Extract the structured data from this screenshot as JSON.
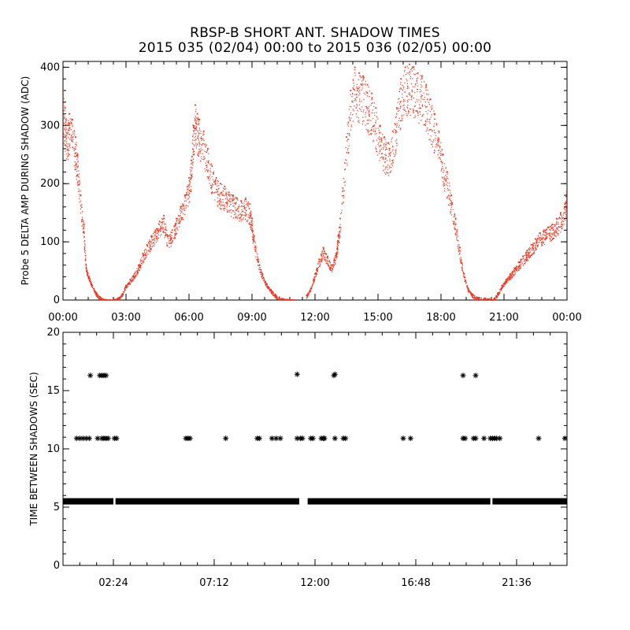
{
  "title": {
    "line1": "RBSP-B SHORT ANT. SHADOW TIMES",
    "line2": "2015 035 (02/04) 00:00 to 2015 036 (02/05) 00:00"
  },
  "colors": {
    "top_points": "#e8321e",
    "bottom_points": "#000000"
  },
  "chart_data": [
    {
      "type": "scatter",
      "title": "",
      "xlabel": "",
      "ylabel": "Probe 5 DELTA AMP DURING SHADOW (ADC)",
      "xlim": [
        0,
        24
      ],
      "ylim": [
        0,
        410
      ],
      "x_unit": "hours",
      "x_tick_values": [
        0,
        3,
        6,
        9,
        12,
        15,
        18,
        21,
        24
      ],
      "x_tick_labels": [
        "00:00",
        "03:00",
        "06:00",
        "09:00",
        "12:00",
        "15:00",
        "18:00",
        "21:00",
        "00:00"
      ],
      "y_ticks": [
        0,
        100,
        200,
        300,
        400
      ],
      "series": [
        {
          "marker": "dot",
          "color": "#e8321e",
          "x": [
            0.0,
            0.1,
            0.2,
            0.3,
            0.45,
            0.6,
            0.7,
            0.85,
            1.0,
            1.1,
            1.25,
            1.4,
            1.6,
            1.75,
            1.9,
            2.0,
            2.1,
            2.25,
            2.6,
            2.8,
            3.0,
            3.2,
            3.4,
            3.6,
            3.8,
            4.0,
            4.2,
            4.4,
            4.6,
            4.8,
            5.0,
            5.2,
            5.4,
            5.6,
            5.8,
            6.0,
            6.1,
            6.2,
            6.3,
            6.4,
            6.5,
            6.7,
            6.9,
            7.1,
            7.3,
            7.5,
            7.7,
            7.9,
            8.1,
            8.3,
            8.5,
            8.7,
            8.9,
            9.0,
            9.1,
            9.3,
            9.5,
            9.7,
            9.9,
            10.1,
            10.3,
            10.5,
            10.7,
            10.9,
            11.0,
            11.6,
            11.8,
            12.0,
            12.2,
            12.4,
            12.6,
            12.8,
            13.0,
            13.1,
            13.2,
            13.5,
            13.7,
            13.9,
            14.1,
            14.3,
            14.5,
            14.7,
            14.9,
            15.1,
            15.3,
            15.5,
            15.7,
            15.9,
            16.1,
            16.3,
            16.5,
            16.7,
            16.9,
            17.1,
            17.3,
            17.5,
            17.7,
            17.9,
            18.1,
            18.3,
            18.5,
            18.7,
            18.9,
            19.1,
            19.3,
            19.5,
            19.7,
            20.1,
            20.3,
            20.5,
            20.7,
            20.9,
            21.1,
            21.3,
            21.5,
            21.7,
            21.9,
            22.1,
            22.3,
            22.5,
            22.7,
            22.9,
            23.1,
            23.3,
            23.5,
            23.7,
            23.9,
            24.0
          ],
          "y": [
            360,
            330,
            300,
            320,
            310,
            280,
            250,
            180,
            130,
            60,
            40,
            25,
            12,
            6,
            2,
            1,
            0,
            0,
            3,
            10,
            25,
            35,
            45,
            60,
            80,
            95,
            110,
            120,
            135,
            145,
            110,
            120,
            140,
            160,
            180,
            210,
            240,
            300,
            335,
            320,
            310,
            290,
            260,
            230,
            210,
            200,
            195,
            185,
            180,
            175,
            170,
            175,
            165,
            140,
            110,
            70,
            45,
            28,
            18,
            10,
            5,
            2,
            1,
            0,
            0,
            8,
            20,
            45,
            70,
            90,
            75,
            60,
            80,
            110,
            140,
            280,
            360,
            400,
            390,
            385,
            370,
            355,
            330,
            300,
            280,
            270,
            290,
            330,
            380,
            400,
            405,
            400,
            390,
            385,
            370,
            345,
            320,
            290,
            250,
            220,
            180,
            140,
            90,
            45,
            20,
            10,
            5,
            3,
            2,
            1,
            12,
            25,
            35,
            45,
            55,
            65,
            75,
            85,
            95,
            105,
            115,
            120,
            125,
            130,
            140,
            150,
            165,
            200
          ]
        }
      ]
    },
    {
      "type": "scatter",
      "title": "",
      "xlabel": "",
      "ylabel": "TIME BETWEEN SHADOWS (SEC)",
      "xlim": [
        0,
        24
      ],
      "ylim": [
        0,
        20
      ],
      "x_unit": "hours",
      "x_tick_values": [
        2.4,
        7.2,
        12.0,
        16.8,
        21.6
      ],
      "x_tick_labels": [
        "02:24",
        "07:12",
        "12:00",
        "16:48",
        "21:36"
      ],
      "y_ticks": [
        0,
        5,
        10,
        15,
        20
      ],
      "baseline": {
        "value": 5.5,
        "x_start": 0.0,
        "x_end": 24.0,
        "gaps": [
          [
            2.4,
            2.5
          ],
          [
            11.25,
            11.65
          ],
          [
            20.35,
            20.45
          ]
        ]
      },
      "series": [
        {
          "marker": "asterisk",
          "color": "#000000",
          "x": [
            0.65,
            0.8,
            0.95,
            1.1,
            1.25,
            1.65,
            1.85,
            1.95,
            2.05,
            2.15,
            2.45,
            2.55,
            5.85,
            5.95,
            6.05,
            7.75,
            9.25,
            9.35,
            9.95,
            10.15,
            10.35,
            11.15,
            11.3,
            11.4,
            11.8,
            11.9,
            12.3,
            12.4,
            12.45,
            12.95,
            13.35,
            13.45,
            16.2,
            16.55,
            19.05,
            19.15,
            19.55,
            19.65,
            20.05,
            20.35,
            20.45,
            20.55,
            20.65,
            20.8,
            22.65,
            23.9
          ],
          "y": [
            10.9,
            10.9,
            10.9,
            10.9,
            10.9,
            10.9,
            10.9,
            10.9,
            10.9,
            10.9,
            10.9,
            10.9,
            10.9,
            10.9,
            10.9,
            10.9,
            10.9,
            10.9,
            10.9,
            10.9,
            10.9,
            10.9,
            10.9,
            10.9,
            10.9,
            10.9,
            10.9,
            10.9,
            10.9,
            10.9,
            10.9,
            10.9,
            10.9,
            10.9,
            10.9,
            10.9,
            10.9,
            10.9,
            10.9,
            10.9,
            10.9,
            10.9,
            10.9,
            10.9,
            10.9,
            10.9
          ]
        },
        {
          "marker": "asterisk",
          "color": "#000000",
          "x": [
            1.3,
            1.75,
            1.85,
            1.95,
            2.05,
            11.15,
            12.9,
            12.95,
            19.05,
            19.65
          ],
          "y": [
            16.3,
            16.3,
            16.3,
            16.3,
            16.3,
            16.4,
            16.3,
            16.4,
            16.3,
            16.3
          ]
        }
      ]
    }
  ]
}
